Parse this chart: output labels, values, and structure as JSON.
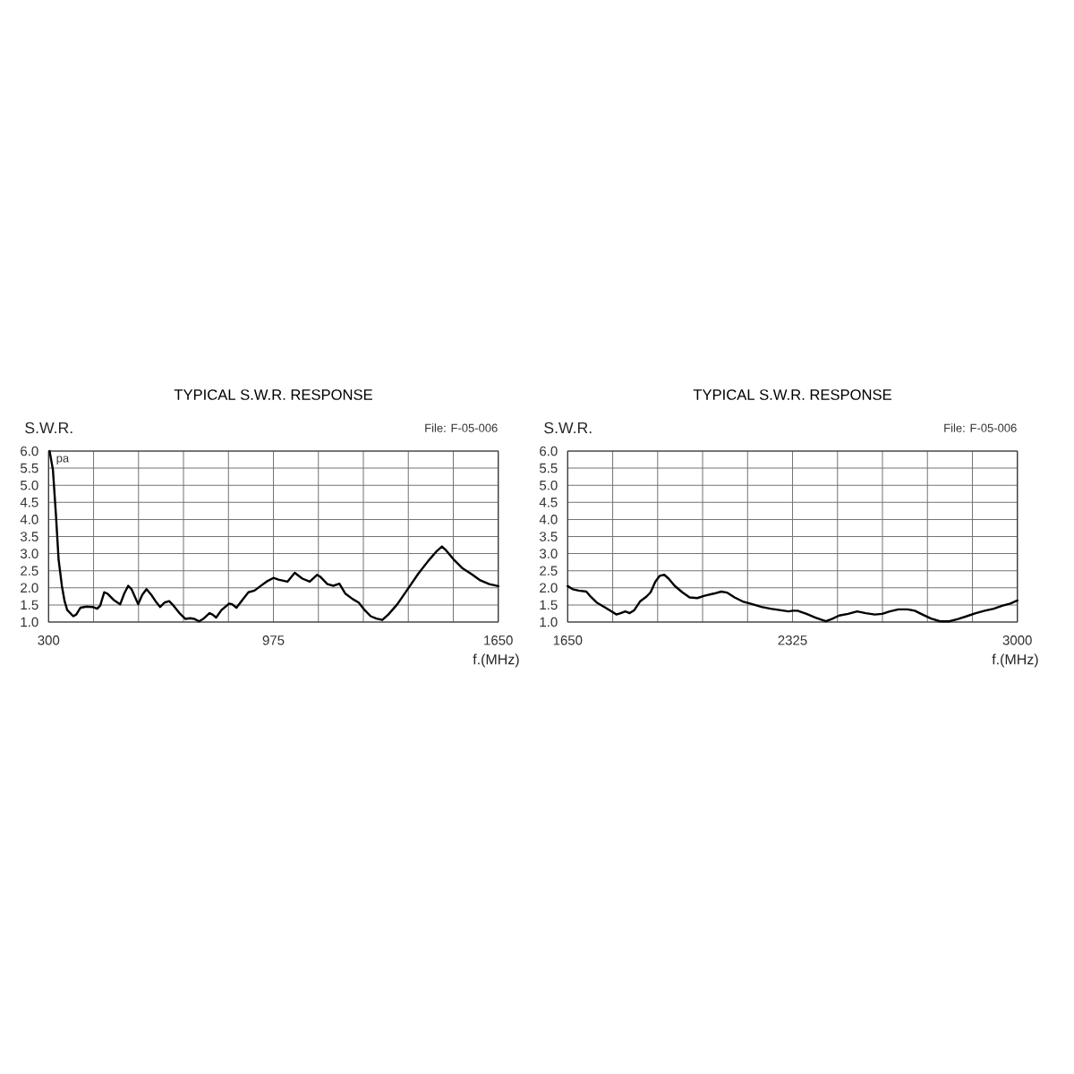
{
  "chart_data": [
    {
      "type": "line",
      "title": "TYPICAL S.W.R. RESPONSE",
      "xlabel": "f.(MHz)",
      "ylabel": "S.W.R.",
      "annotations": [
        "File: F-05-006",
        {
          "text": "pa",
          "x": 300,
          "y": 6.0
        }
      ],
      "x": [
        303,
        313,
        322,
        330,
        340,
        348,
        356,
        374,
        383,
        396,
        414,
        432,
        446,
        455,
        467,
        477,
        495,
        515,
        527,
        539,
        549,
        569,
        581,
        594,
        608,
        621,
        635,
        648,
        662,
        675,
        693,
        711,
        725,
        738,
        752,
        764,
        783,
        792,
        803,
        819,
        842,
        851,
        864,
        882,
        900,
        918,
        936,
        954,
        975,
        990,
        1017,
        1039,
        1062,
        1084,
        1106,
        1115,
        1137,
        1155,
        1173,
        1191,
        1213,
        1231,
        1249,
        1267,
        1284,
        1302,
        1320,
        1347,
        1378,
        1409,
        1440,
        1463,
        1481,
        1494,
        1516,
        1543,
        1570,
        1596,
        1623,
        1650
      ],
      "values": [
        6.0,
        5.45,
        4.14,
        2.83,
        2.05,
        1.61,
        1.35,
        1.17,
        1.22,
        1.42,
        1.45,
        1.44,
        1.39,
        1.48,
        1.87,
        1.83,
        1.65,
        1.52,
        1.83,
        2.06,
        1.96,
        1.52,
        1.79,
        1.96,
        1.8,
        1.61,
        1.44,
        1.57,
        1.61,
        1.48,
        1.26,
        1.09,
        1.11,
        1.09,
        1.02,
        1.09,
        1.26,
        1.22,
        1.13,
        1.35,
        1.54,
        1.52,
        1.42,
        1.65,
        1.87,
        1.92,
        2.05,
        2.18,
        2.29,
        2.24,
        2.18,
        2.44,
        2.27,
        2.18,
        2.38,
        2.33,
        2.11,
        2.06,
        2.12,
        1.83,
        1.67,
        1.57,
        1.35,
        1.17,
        1.1,
        1.06,
        1.22,
        1.52,
        1.96,
        2.4,
        2.79,
        3.05,
        3.21,
        3.09,
        2.83,
        2.57,
        2.4,
        2.22,
        2.11,
        2.05
      ],
      "color": "#000000",
      "xlim": [
        300,
        1650
      ],
      "ylim": [
        1,
        6
      ],
      "xticks": [
        300,
        {
          "value": 435,
          "label": null
        },
        {
          "value": 570,
          "label": null
        },
        {
          "value": 705,
          "label": null
        },
        {
          "value": 840,
          "label": null
        },
        975,
        {
          "value": 1110,
          "label": null
        },
        {
          "value": 1245,
          "label": null
        },
        {
          "value": 1380,
          "label": null
        },
        {
          "value": 1515,
          "label": null
        },
        1650
      ],
      "yticks": [
        {
          "value": 1,
          "label": "1.0"
        },
        1.5,
        {
          "value": 2,
          "label": "2.0"
        },
        2.5,
        {
          "value": 3,
          "label": "3.0"
        },
        3.5,
        {
          "value": 4,
          "label": "4.0"
        },
        4.5,
        {
          "value": 5,
          "label": "5.0"
        },
        5.5,
        {
          "value": 6,
          "label": "6.0"
        }
      ],
      "grid": true
    },
    {
      "type": "line",
      "title": "TYPICAL S.W.R. RESPONSE",
      "xlabel": "f.(MHz)",
      "ylabel": "S.W.R.",
      "annotations": [
        "File: F-05-006"
      ],
      "x": [
        1650,
        1665,
        1683,
        1706,
        1719,
        1737,
        1760,
        1782,
        1796,
        1809,
        1823,
        1836,
        1850,
        1868,
        1886,
        1899,
        1913,
        1926,
        1940,
        1953,
        1971,
        1994,
        2016,
        2039,
        2061,
        2088,
        2111,
        2129,
        2151,
        2178,
        2205,
        2232,
        2259,
        2286,
        2313,
        2325,
        2340,
        2367,
        2394,
        2425,
        2443,
        2465,
        2492,
        2519,
        2545,
        2572,
        2594,
        2617,
        2643,
        2670,
        2692,
        2715,
        2741,
        2768,
        2795,
        2822,
        2848,
        2875,
        2902,
        2929,
        2956,
        2979,
        3000
      ],
      "values": [
        2.05,
        1.96,
        1.92,
        1.89,
        1.74,
        1.57,
        1.44,
        1.31,
        1.22,
        1.26,
        1.31,
        1.26,
        1.35,
        1.61,
        1.74,
        1.87,
        2.18,
        2.35,
        2.38,
        2.27,
        2.06,
        1.87,
        1.72,
        1.7,
        1.77,
        1.83,
        1.89,
        1.86,
        1.72,
        1.59,
        1.52,
        1.44,
        1.39,
        1.35,
        1.31,
        1.33,
        1.33,
        1.24,
        1.13,
        1.02,
        1.09,
        1.19,
        1.24,
        1.31,
        1.26,
        1.22,
        1.24,
        1.31,
        1.37,
        1.37,
        1.33,
        1.22,
        1.1,
        1.02,
        1.02,
        1.09,
        1.17,
        1.26,
        1.33,
        1.39,
        1.48,
        1.54,
        1.63
      ],
      "color": "#000000",
      "xlim": [
        1650,
        3000
      ],
      "ylim": [
        1,
        6
      ],
      "xticks": [
        1650,
        {
          "value": 1785,
          "label": null
        },
        {
          "value": 1920,
          "label": null
        },
        {
          "value": 2055,
          "label": null
        },
        {
          "value": 2190,
          "label": null
        },
        2325,
        {
          "value": 2460,
          "label": null
        },
        {
          "value": 2595,
          "label": null
        },
        {
          "value": 2730,
          "label": null
        },
        {
          "value": 2865,
          "label": null
        },
        3000
      ],
      "yticks": [
        {
          "value": 1,
          "label": "1.0"
        },
        1.5,
        {
          "value": 2,
          "label": "2.0"
        },
        2.5,
        {
          "value": 3,
          "label": "3.0"
        },
        3.5,
        {
          "value": 4,
          "label": "4.0"
        },
        4.5,
        {
          "value": 5,
          "label": "5.0"
        },
        5.5,
        {
          "value": 6,
          "label": "6.0"
        }
      ],
      "grid": true
    }
  ]
}
